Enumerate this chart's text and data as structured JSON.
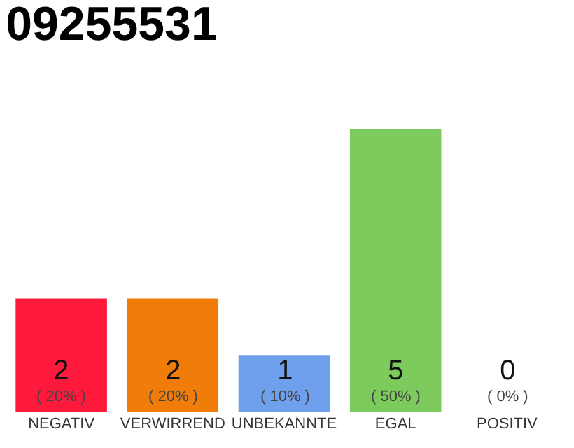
{
  "chart_data": {
    "type": "bar",
    "title": "09255531",
    "categories": [
      "NEGATIV",
      "VERWIRREND",
      "UNBEKANNTE",
      "EGAL",
      "POSITIV"
    ],
    "values": [
      2,
      2,
      1,
      5,
      0
    ],
    "colors": [
      "#ff1a3c",
      "#f07c0a",
      "#6fa0ee",
      "#7dcb5d",
      "#2ea84a"
    ],
    "value_labels": [
      "2\n( 20% )",
      "2\n( 20% )",
      "1\n( 10% )",
      "5\n( 50% )",
      "0\n( 0% )"
    ],
    "legend": false
  }
}
